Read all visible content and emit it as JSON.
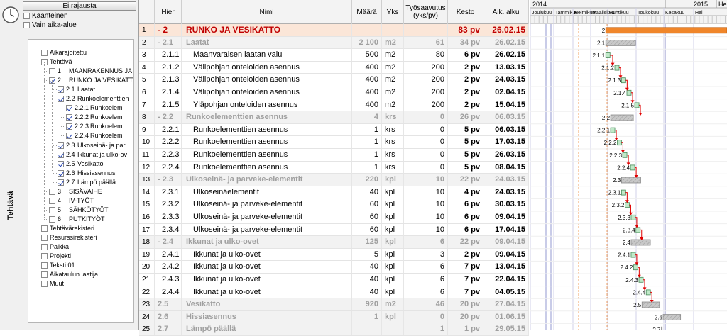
{
  "sidebar": {
    "filter_button": "Ei rajausta",
    "options": [
      {
        "label": "Käänteinen",
        "checked": false
      },
      {
        "label": "Vain aika-alue",
        "checked": false
      }
    ],
    "vertical_tab": "Tehtävä",
    "tree": [
      {
        "num": "",
        "label": "Aikarajoitettu",
        "checked": false,
        "level": 0
      },
      {
        "num": "",
        "label": "Tehtävä",
        "checked": false,
        "level": 0
      },
      {
        "num": "1",
        "label": "MAANRAKENNUS JA",
        "checked": false,
        "level": 1
      },
      {
        "num": "2",
        "label": "RUNKO JA VESIKATTO",
        "checked": true,
        "level": 1
      },
      {
        "num": "2.1",
        "label": "Laatat",
        "checked": true,
        "level": 2
      },
      {
        "num": "2.2",
        "label": "Runkoelementtien",
        "checked": true,
        "level": 2
      },
      {
        "num": "2.2.1",
        "label": "Runkoelem",
        "checked": true,
        "level": 3
      },
      {
        "num": "2.2.2",
        "label": "Runkoelem",
        "checked": true,
        "level": 3
      },
      {
        "num": "2.2.3",
        "label": "Runkoelem",
        "checked": true,
        "level": 3
      },
      {
        "num": "2.2.4",
        "label": "Runkoelem",
        "checked": true,
        "level": 3
      },
      {
        "num": "2.3",
        "label": "Ulkoseinä- ja par",
        "checked": true,
        "level": 2
      },
      {
        "num": "2.4",
        "label": "Ikkunat ja ulko-ov",
        "checked": true,
        "level": 2
      },
      {
        "num": "2.5",
        "label": "Vesikatto",
        "checked": true,
        "level": 2
      },
      {
        "num": "2.6",
        "label": "Hissiasennus",
        "checked": true,
        "level": 2
      },
      {
        "num": "2.7",
        "label": "Lämpö päällä",
        "checked": true,
        "level": 2
      },
      {
        "num": "3",
        "label": "SISÄVAIHE",
        "checked": false,
        "level": 1
      },
      {
        "num": "4",
        "label": "IV-TYÖT",
        "checked": false,
        "level": 1
      },
      {
        "num": "5",
        "label": "SÄHKÖTYÖT",
        "checked": false,
        "level": 1
      },
      {
        "num": "6",
        "label": "PUTKITYÖT",
        "checked": false,
        "level": 1
      },
      {
        "num": "",
        "label": "Tehtävärekisteri",
        "checked": false,
        "level": 0
      },
      {
        "num": "",
        "label": "Resurssirekisteri",
        "checked": false,
        "level": 0
      },
      {
        "num": "",
        "label": "Paikka",
        "checked": false,
        "level": 0
      },
      {
        "num": "",
        "label": "Projekti",
        "checked": false,
        "level": 0
      },
      {
        "num": "",
        "label": "Teksti 01",
        "checked": false,
        "level": 0
      },
      {
        "num": "",
        "label": "Aikataulun laatija",
        "checked": false,
        "level": 0
      },
      {
        "num": "",
        "label": "Muut",
        "checked": false,
        "level": 0
      }
    ]
  },
  "grid": {
    "columns": {
      "rownum": "",
      "hier": "Hier",
      "name": "Nimi",
      "qty": "Määrä",
      "unit": "Yks",
      "rate": "Työsaavutus (yks/pv)",
      "duration": "Kesto",
      "start": "Aik. alku"
    },
    "rows": [
      {
        "n": "1",
        "hier": "- 2",
        "name": "RUNKO JA VESIKATTO",
        "qty": "",
        "unit": "",
        "rate": "",
        "dur": "83 pv",
        "start": "26.02.15",
        "type": "top"
      },
      {
        "n": "2",
        "hier": "- 2.1",
        "name": "Laatat",
        "qty": "2 100",
        "unit": "m2",
        "rate": "61",
        "dur": "34 pv",
        "start": "26.02.15",
        "type": "sum"
      },
      {
        "n": "3",
        "hier": "2.1.1",
        "name": "Maanvaraisen laatan valu",
        "qty": "500",
        "unit": "m2",
        "rate": "80",
        "dur": "6 pv",
        "start": "26.02.15",
        "type": "task"
      },
      {
        "n": "4",
        "hier": "2.1.2",
        "name": "Välipohjan onteloiden asennus",
        "qty": "400",
        "unit": "m2",
        "rate": "200",
        "dur": "2 pv",
        "start": "13.03.15",
        "type": "task"
      },
      {
        "n": "5",
        "hier": "2.1.3",
        "name": "Välipohjan onteloiden asennus",
        "qty": "400",
        "unit": "m2",
        "rate": "200",
        "dur": "2 pv",
        "start": "24.03.15",
        "type": "task"
      },
      {
        "n": "6",
        "hier": "2.1.4",
        "name": "Välipohjan onteloiden asennus",
        "qty": "400",
        "unit": "m2",
        "rate": "200",
        "dur": "2 pv",
        "start": "02.04.15",
        "type": "task"
      },
      {
        "n": "7",
        "hier": "2.1.5",
        "name": "Yläpohjan onteloiden asennus",
        "qty": "400",
        "unit": "m2",
        "rate": "200",
        "dur": "2 pv",
        "start": "15.04.15",
        "type": "task"
      },
      {
        "n": "8",
        "hier": "- 2.2",
        "name": "Runkoelementtien asennus",
        "qty": "4",
        "unit": "krs",
        "rate": "0",
        "dur": "26 pv",
        "start": "06.03.15",
        "type": "sum"
      },
      {
        "n": "9",
        "hier": "2.2.1",
        "name": "Runkoelementtien asennus",
        "qty": "1",
        "unit": "krs",
        "rate": "0",
        "dur": "5 pv",
        "start": "06.03.15",
        "type": "task"
      },
      {
        "n": "10",
        "hier": "2.2.2",
        "name": "Runkoelementtien asennus",
        "qty": "1",
        "unit": "krs",
        "rate": "0",
        "dur": "5 pv",
        "start": "17.03.15",
        "type": "task"
      },
      {
        "n": "11",
        "hier": "2.2.3",
        "name": "Runkoelementtien asennus",
        "qty": "1",
        "unit": "krs",
        "rate": "0",
        "dur": "5 pv",
        "start": "26.03.15",
        "type": "task"
      },
      {
        "n": "12",
        "hier": "2.2.4",
        "name": "Runkoelementtien asennus",
        "qty": "1",
        "unit": "krs",
        "rate": "0",
        "dur": "5 pv",
        "start": "08.04.15",
        "type": "task"
      },
      {
        "n": "13",
        "hier": "- 2.3",
        "name": "Ulkoseinä- ja parveke-elementit",
        "qty": "220",
        "unit": "kpl",
        "rate": "10",
        "dur": "22 pv",
        "start": "24.03.15",
        "type": "sum"
      },
      {
        "n": "14",
        "hier": "2.3.1",
        "name": "Ulkoseinäelementit",
        "qty": "40",
        "unit": "kpl",
        "rate": "10",
        "dur": "4 pv",
        "start": "24.03.15",
        "type": "task"
      },
      {
        "n": "15",
        "hier": "2.3.2",
        "name": "Ulkoseinä- ja parveke-elementit",
        "qty": "60",
        "unit": "kpl",
        "rate": "10",
        "dur": "6 pv",
        "start": "30.03.15",
        "type": "task"
      },
      {
        "n": "16",
        "hier": "2.3.3",
        "name": "Ulkoseinä- ja parveke-elementit",
        "qty": "60",
        "unit": "kpl",
        "rate": "10",
        "dur": "6 pv",
        "start": "09.04.15",
        "type": "task"
      },
      {
        "n": "17",
        "hier": "2.3.4",
        "name": "Ulkoseinä- ja parveke-elementit",
        "qty": "60",
        "unit": "kpl",
        "rate": "10",
        "dur": "6 pv",
        "start": "17.04.15",
        "type": "task"
      },
      {
        "n": "18",
        "hier": "- 2.4",
        "name": "Ikkunat ja ulko-ovet",
        "qty": "125",
        "unit": "kpl",
        "rate": "6",
        "dur": "22 pv",
        "start": "09.04.15",
        "type": "sum"
      },
      {
        "n": "19",
        "hier": "2.4.1",
        "name": "Ikkunat ja ulko-ovet",
        "qty": "5",
        "unit": "kpl",
        "rate": "3",
        "dur": "2 pv",
        "start": "09.04.15",
        "type": "task"
      },
      {
        "n": "20",
        "hier": "2.4.2",
        "name": "Ikkunat ja ulko-ovet",
        "qty": "40",
        "unit": "kpl",
        "rate": "6",
        "dur": "7 pv",
        "start": "13.04.15",
        "type": "task"
      },
      {
        "n": "21",
        "hier": "2.4.3",
        "name": "Ikkunat ja ulko-ovet",
        "qty": "40",
        "unit": "kpl",
        "rate": "6",
        "dur": "7 pv",
        "start": "22.04.15",
        "type": "task"
      },
      {
        "n": "22",
        "hier": "2.4.4",
        "name": "Ikkunat ja ulko-ovet",
        "qty": "40",
        "unit": "kpl",
        "rate": "6",
        "dur": "7 pv",
        "start": "04.05.15",
        "type": "task"
      },
      {
        "n": "23",
        "hier": "2.5",
        "name": "Vesikatto",
        "qty": "920",
        "unit": "m2",
        "rate": "46",
        "dur": "20 pv",
        "start": "27.04.15",
        "type": "sum"
      },
      {
        "n": "24",
        "hier": "2.6",
        "name": "Hissiasennus",
        "qty": "1",
        "unit": "kpl",
        "rate": "0",
        "dur": "20 pv",
        "start": "01.06.15",
        "type": "sum"
      },
      {
        "n": "25",
        "hier": "2.7",
        "name": "Lämpö päällä",
        "qty": "",
        "unit": "",
        "rate": "1",
        "dur": "1 pv",
        "start": "29.05.15",
        "type": "sum"
      }
    ]
  },
  "gantt": {
    "years": [
      "2014",
      "2015",
      "He"
    ],
    "months": [
      "Joulukuu",
      "Tammikuu",
      "Helmikuu",
      "Maaliskuu",
      "Huhtikuu",
      "Toukokuu",
      "Kesäkuu",
      "Hei"
    ],
    "bar_labels": [
      "2",
      "2.1",
      "2.1.1",
      "2.1.2",
      "2.1.3",
      "2.1.4",
      "2.1.5",
      "2.2",
      "2.2.1",
      "2.2.2",
      "2.2.3",
      "2.2.4",
      "2.3",
      "2.3.1",
      "2.3.2",
      "2.3.3",
      "2.3.4",
      "2.4",
      "2.4.1",
      "2.4.2",
      "2.4.3",
      "2.4.4",
      "2.5",
      "2.6",
      "2.7"
    ],
    "colors": {
      "summary_top": "#f0862a",
      "summary": "#c8c8c8",
      "task": "#bfe9c8",
      "link": "#e00000"
    }
  }
}
